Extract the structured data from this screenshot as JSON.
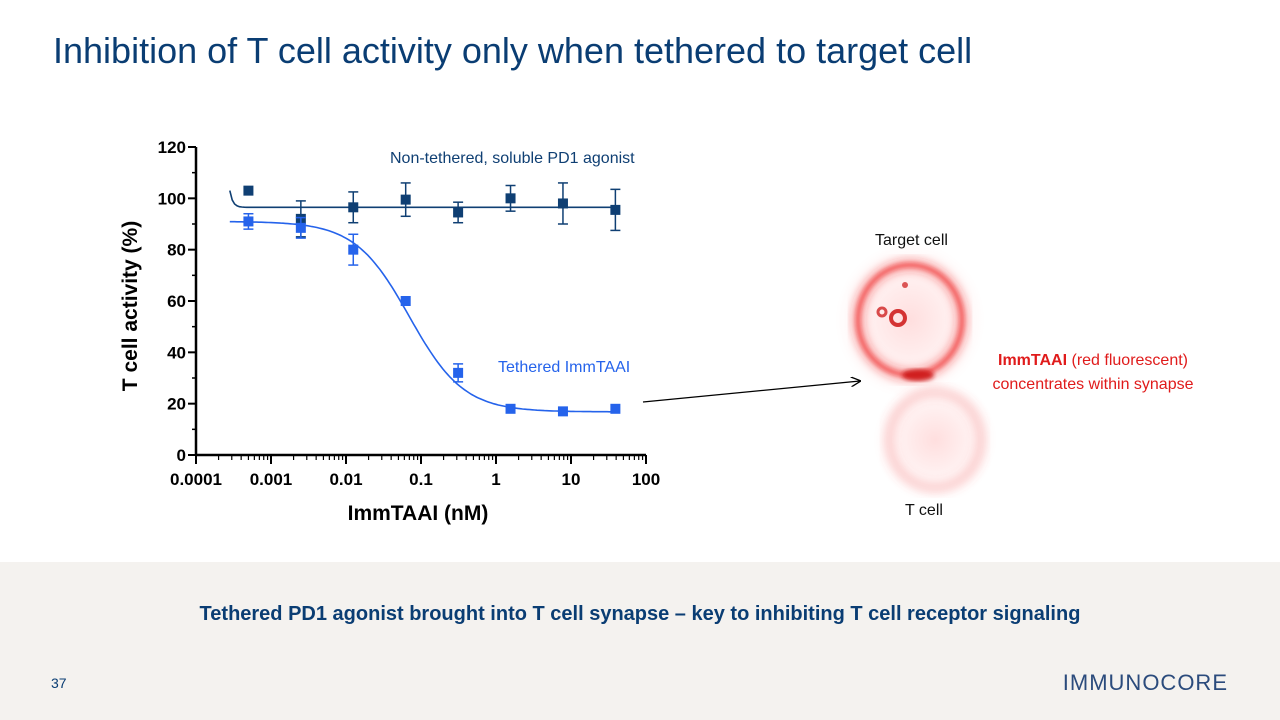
{
  "slide": {
    "title": "Inhibition of T cell activity only when tethered to target cell",
    "key_message": "Tethered PD1 agonist brought into T cell synapse – key to inhibiting T cell receptor signaling",
    "page_number": "37",
    "logo_text": "IMMUNOCORE"
  },
  "image_panel": {
    "target_cell_label": "Target cell",
    "t_cell_label": "T cell",
    "callout_bold": "ImmTAAI",
    "callout_rest": " (red fluorescent)",
    "callout_line2": "concentrates within synapse"
  },
  "colors": {
    "title": "#0a3d73",
    "non_tethered": "#0f3f73",
    "tethered": "#2563eb",
    "fluorescent_red": "#e01b1b"
  },
  "chart_data": {
    "type": "scatter",
    "xscale": "log",
    "xlabel": "ImmTAAI (nM)",
    "ylabel": "T cell activity (%)",
    "xlim": [
      0.0001,
      100
    ],
    "ylim": [
      0,
      120
    ],
    "xticks": [
      "0.0001",
      "0.001",
      "0.01",
      "0.1",
      "1",
      "10",
      "100"
    ],
    "yticks": [
      "0",
      "20",
      "40",
      "60",
      "80",
      "100",
      "120"
    ],
    "series": [
      {
        "name": "Non-tethered, soluble PD1 agonist",
        "color": "#0f3f73",
        "x": [
          0.0005,
          0.0025,
          0.0125,
          0.0625,
          0.3125,
          1.5625,
          7.8125,
          39.0625
        ],
        "y": [
          103,
          92,
          96.5,
          99.5,
          94.5,
          100,
          98,
          95.5
        ],
        "err": [
          0,
          7,
          6,
          6.5,
          4,
          5,
          8,
          8
        ],
        "fit": {
          "model": "flat",
          "top": 96.5,
          "start": 103
        }
      },
      {
        "name": "Tethered ImmTAAI",
        "color": "#2563eb",
        "x": [
          0.0005,
          0.0025,
          0.0125,
          0.0625,
          0.3125,
          1.5625,
          7.8125,
          39.0625
        ],
        "y": [
          91,
          88.5,
          80,
          60,
          32,
          18,
          17,
          18
        ],
        "err": [
          3,
          4,
          6,
          0,
          3.5,
          0,
          0,
          0
        ],
        "fit": {
          "model": "4PL",
          "top": 91,
          "bottom": 16.8,
          "ec50": 0.07,
          "hill": 1.2
        }
      }
    ]
  }
}
